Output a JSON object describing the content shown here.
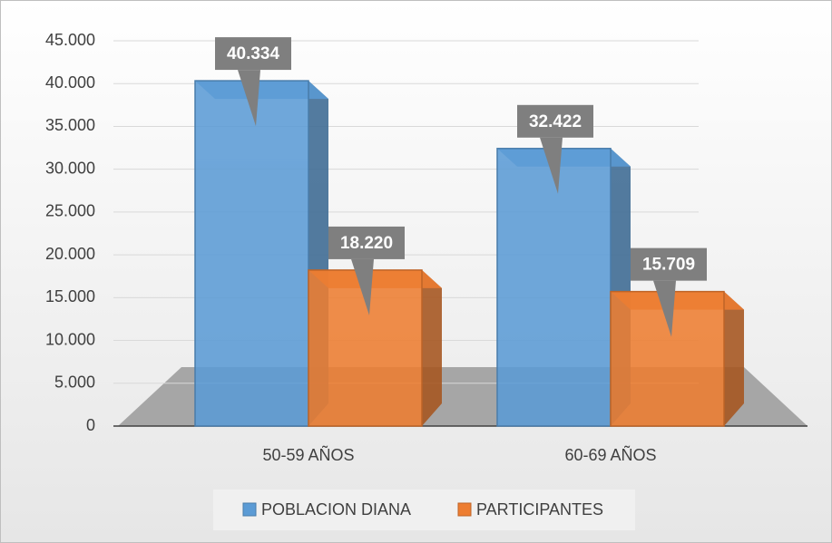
{
  "chart_data": {
    "type": "bar",
    "categories": [
      "50-59 AÑOS",
      "60-69 AÑOS"
    ],
    "series": [
      {
        "name": "POBLACION DIANA",
        "color": "#5b9bd5",
        "values": [
          40334,
          32422
        ],
        "value_labels": [
          "40.334",
          "32.422"
        ]
      },
      {
        "name": "PARTICIPANTES",
        "color": "#ed7d31",
        "values": [
          18220,
          15709
        ],
        "value_labels": [
          "18.220",
          "15.709"
        ]
      }
    ],
    "ylim": [
      0,
      45000
    ],
    "yticks": [
      0,
      {
        "value": 5000,
        "label": "5.000"
      },
      {
        "value": 10000,
        "label": "10.000"
      },
      {
        "value": 15000,
        "label": "15.000"
      },
      {
        "value": 20000,
        "label": "20.000"
      },
      {
        "value": 25000,
        "label": "25.000"
      },
      {
        "value": 30000,
        "label": "30.000"
      },
      {
        "value": 35000,
        "label": "35.000"
      },
      {
        "value": 40000,
        "label": "40.000"
      },
      {
        "value": 45000,
        "label": "45.000"
      }
    ],
    "grid": true,
    "legend": "bottom"
  }
}
